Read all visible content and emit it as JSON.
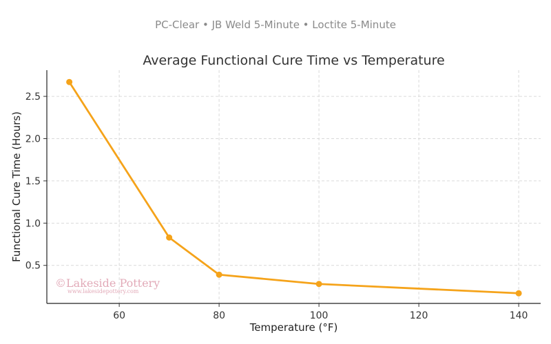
{
  "subtitle": "PC-Clear • JB Weld 5-Minute • Loctite 5-Minute",
  "watermark": {
    "line1": "©Lakeside Pottery",
    "line2": "www.lakesidepottery.com"
  },
  "chart_data": {
    "type": "line",
    "title": "Average Functional Cure Time vs Temperature",
    "xlabel": "Temperature (°F)",
    "ylabel": "Functional Cure Time (Hours)",
    "x": [
      50,
      70,
      80,
      100,
      140
    ],
    "series": [
      {
        "values": [
          2.67,
          0.83,
          0.39,
          0.28,
          0.17
        ],
        "color": "#f5a31a"
      }
    ],
    "xlim": [
      45.5,
      144.4
    ],
    "ylim": [
      0.05,
      2.81
    ],
    "xticks": [
      60,
      80,
      100,
      120,
      140
    ],
    "yticks": [
      0.5,
      1.0,
      1.5,
      2.0,
      2.5
    ],
    "ytick_labels": [
      "0.5",
      "1.0",
      "1.5",
      "2.0",
      "2.5"
    ],
    "grid": true,
    "markers": true
  }
}
